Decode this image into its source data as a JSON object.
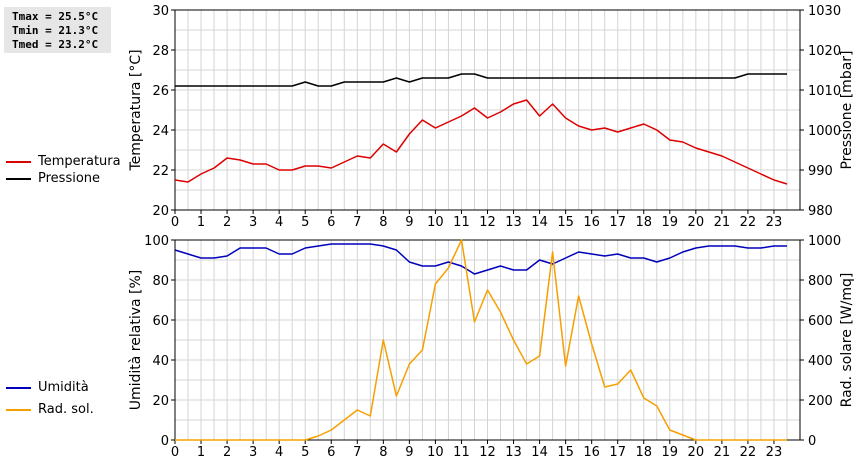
{
  "stats": {
    "tmax": "Tmax = 25.5°C",
    "tmin": "Tmin = 21.3°C",
    "tmed": "Tmed = 23.2°C"
  },
  "colors": {
    "temperature": "#dd0000",
    "pressure": "#000000",
    "humidity": "#0000bb",
    "radiation": "#f5a000",
    "grid": "#d4d4d4"
  },
  "chart_data": [
    {
      "type": "line",
      "title": "",
      "xlabel": "",
      "ylabel": "Temperatura [°C]",
      "y2label": "Pressione [mbar]",
      "xlim": [
        0,
        24
      ],
      "xticks": [
        "0",
        "1",
        "2",
        "3",
        "4",
        "5",
        "6",
        "7",
        "8",
        "9",
        "10",
        "11",
        "12",
        "13",
        "14",
        "15",
        "16",
        "17",
        "18",
        "19",
        "20",
        "21",
        "22",
        "23"
      ],
      "ylim": [
        20,
        30
      ],
      "yticks": [
        "20",
        "22",
        "24",
        "26",
        "28",
        "30"
      ],
      "y2lim": [
        980,
        1030
      ],
      "y2ticks": [
        "980",
        "990",
        "1000",
        "1010",
        "1020",
        "1030"
      ],
      "legend": [
        "Temperatura",
        "Pressione"
      ],
      "x": [
        0,
        0.5,
        1,
        1.5,
        2,
        2.5,
        3,
        3.5,
        4,
        4.5,
        5,
        5.5,
        6,
        6.5,
        7,
        7.5,
        8,
        8.5,
        9,
        9.5,
        10,
        10.5,
        11,
        11.5,
        12,
        12.5,
        13,
        13.5,
        14,
        14.5,
        15,
        15.5,
        16,
        16.5,
        17,
        17.5,
        18,
        18.5,
        19,
        19.5,
        20,
        20.5,
        21,
        21.5,
        22,
        22.5,
        23,
        23.5
      ],
      "series": [
        {
          "name": "Temperatura",
          "axis": "left",
          "values": [
            21.5,
            21.4,
            21.8,
            22.1,
            22.6,
            22.5,
            22.3,
            22.3,
            22.0,
            22.0,
            22.2,
            22.2,
            22.1,
            22.4,
            22.7,
            22.6,
            23.3,
            22.9,
            23.8,
            24.5,
            24.1,
            24.4,
            24.7,
            25.1,
            24.6,
            24.9,
            25.3,
            25.5,
            24.7,
            25.3,
            24.6,
            24.2,
            24.0,
            24.1,
            23.9,
            24.1,
            24.3,
            24.0,
            23.5,
            23.4,
            23.1,
            22.9,
            22.7,
            22.4,
            22.1,
            21.8,
            21.5,
            21.3
          ]
        },
        {
          "name": "Pressione",
          "axis": "right",
          "values": [
            1011,
            1011,
            1011,
            1011,
            1011,
            1011,
            1011,
            1011,
            1011,
            1011,
            1012,
            1011,
            1011,
            1012,
            1012,
            1012,
            1012,
            1013,
            1012,
            1013,
            1013,
            1013,
            1014,
            1014,
            1013,
            1013,
            1013,
            1013,
            1013,
            1013,
            1013,
            1013,
            1013,
            1013,
            1013,
            1013,
            1013,
            1013,
            1013,
            1013,
            1013,
            1013,
            1013,
            1013,
            1014,
            1014,
            1014,
            1014
          ]
        }
      ]
    },
    {
      "type": "line",
      "title": "",
      "xlabel": "",
      "ylabel": "Umidità relativa [%]",
      "y2label": "Rad. solare [W/mq]",
      "xlim": [
        0,
        24
      ],
      "xticks": [
        "0",
        "1",
        "2",
        "3",
        "4",
        "5",
        "6",
        "7",
        "8",
        "9",
        "10",
        "11",
        "12",
        "13",
        "14",
        "15",
        "16",
        "17",
        "18",
        "19",
        "20",
        "21",
        "22",
        "23"
      ],
      "ylim": [
        0,
        100
      ],
      "yticks": [
        "0",
        "20",
        "40",
        "60",
        "80",
        "100"
      ],
      "y2lim": [
        0,
        1000
      ],
      "y2ticks": [
        "0",
        "200",
        "400",
        "600",
        "800",
        "1000"
      ],
      "legend": [
        "Umidità",
        "Rad. sol."
      ],
      "x": [
        0,
        0.5,
        1,
        1.5,
        2,
        2.5,
        3,
        3.5,
        4,
        4.5,
        5,
        5.5,
        6,
        6.5,
        7,
        7.5,
        8,
        8.5,
        9,
        9.5,
        10,
        10.5,
        11,
        11.5,
        12,
        12.5,
        13,
        13.5,
        14,
        14.5,
        15,
        15.5,
        16,
        16.5,
        17,
        17.5,
        18,
        18.5,
        19,
        19.5,
        20,
        20.5,
        21,
        21.5,
        22,
        22.5,
        23,
        23.5
      ],
      "series": [
        {
          "name": "Umidità",
          "axis": "left",
          "values": [
            95,
            93,
            91,
            91,
            92,
            96,
            96,
            96,
            93,
            93,
            96,
            97,
            98,
            98,
            98,
            98,
            97,
            95,
            89,
            87,
            87,
            89,
            87,
            83,
            85,
            87,
            85,
            85,
            90,
            88,
            91,
            94,
            93,
            92,
            93,
            91,
            91,
            89,
            91,
            94,
            96,
            97,
            97,
            97,
            96,
            96,
            97,
            97
          ]
        },
        {
          "name": "Rad. sol.",
          "axis": "right",
          "values": [
            0,
            0,
            0,
            0,
            0,
            0,
            0,
            0,
            0,
            0,
            0,
            20,
            50,
            100,
            150,
            120,
            500,
            220,
            380,
            450,
            780,
            860,
            1010,
            590,
            750,
            640,
            500,
            380,
            420,
            940,
            370,
            720,
            480,
            265,
            280,
            350,
            210,
            170,
            50,
            25,
            0,
            0,
            0,
            0,
            0,
            0,
            0,
            0
          ]
        }
      ]
    }
  ],
  "legend_labels": {
    "temperature": "Temperatura",
    "pressure": "Pressione",
    "humidity": "Umidità",
    "radiation": "Rad. sol."
  }
}
